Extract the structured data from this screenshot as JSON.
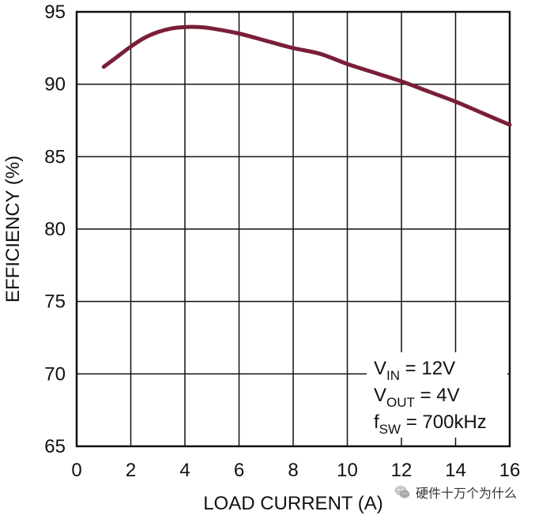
{
  "chart_data": {
    "type": "line",
    "title": "",
    "xlabel": "LOAD CURRENT (A)",
    "ylabel": "EFFICIENCY (%)",
    "xlim": [
      0,
      16
    ],
    "ylim": [
      65,
      95
    ],
    "xticks": [
      "0",
      "2",
      "4",
      "6",
      "8",
      "10",
      "12",
      "14",
      "16"
    ],
    "yticks": [
      "95",
      "90",
      "85",
      "80",
      "75",
      "70",
      "65"
    ],
    "grid": true,
    "legend": "none",
    "series": [
      {
        "color": "#7a1f38",
        "x": [
          1,
          1.5,
          2,
          2.5,
          3,
          3.5,
          4,
          4.5,
          5,
          6,
          7,
          8,
          9,
          10,
          11,
          12,
          13,
          14,
          15,
          16
        ],
        "y": [
          91.2,
          91.9,
          92.6,
          93.2,
          93.6,
          93.85,
          93.95,
          93.95,
          93.85,
          93.5,
          93.0,
          92.5,
          92.1,
          91.4,
          90.8,
          90.2,
          89.5,
          88.8,
          88.0,
          87.2
        ]
      }
    ],
    "annotations": [
      {
        "main": "V",
        "sub": "IN",
        "rest": " = 12V"
      },
      {
        "main": "V",
        "sub": "OUT",
        "rest": " = 4V"
      },
      {
        "main": "f",
        "sub": "SW",
        "rest": " = 700kHz"
      }
    ]
  },
  "watermark": {
    "text": "硬件十万个为什么",
    "icon": "wechat-icon"
  }
}
